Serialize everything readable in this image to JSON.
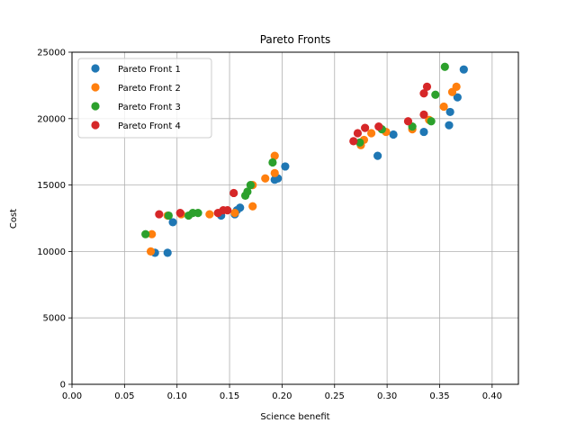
{
  "chart_data": {
    "type": "scatter",
    "title": "Pareto Fronts",
    "xlabel": "Science benefit",
    "ylabel": "Cost",
    "xlim": [
      0.0,
      0.425
    ],
    "ylim": [
      0,
      25000
    ],
    "xticks": [
      "0.00",
      "0.05",
      "0.10",
      "0.15",
      "0.20",
      "0.25",
      "0.30",
      "0.35",
      "0.40"
    ],
    "xtick_values": [
      0.0,
      0.05,
      0.1,
      0.15,
      0.2,
      0.25,
      0.3,
      0.35,
      0.4
    ],
    "yticks": [
      "0",
      "5000",
      "10000",
      "15000",
      "20000",
      "25000"
    ],
    "ytick_values": [
      0,
      5000,
      10000,
      15000,
      20000,
      25000
    ],
    "grid": true,
    "legend_position": "top-left",
    "series": [
      {
        "name": "Pareto Front 1",
        "color": "#1f77b4",
        "points": [
          [
            0.079,
            9900
          ],
          [
            0.091,
            9900
          ],
          [
            0.096,
            12200
          ],
          [
            0.142,
            12700
          ],
          [
            0.155,
            12800
          ],
          [
            0.157,
            13100
          ],
          [
            0.16,
            13300
          ],
          [
            0.193,
            15400
          ],
          [
            0.196,
            15500
          ],
          [
            0.203,
            16400
          ],
          [
            0.291,
            17200
          ],
          [
            0.306,
            18800
          ],
          [
            0.335,
            19000
          ],
          [
            0.359,
            19500
          ],
          [
            0.36,
            20500
          ],
          [
            0.367,
            21600
          ],
          [
            0.373,
            23700
          ]
        ]
      },
      {
        "name": "Pareto Front 2",
        "color": "#ff7f0e",
        "points": [
          [
            0.075,
            10000
          ],
          [
            0.076,
            11300
          ],
          [
            0.091,
            12700
          ],
          [
            0.104,
            12800
          ],
          [
            0.131,
            12800
          ],
          [
            0.155,
            12900
          ],
          [
            0.172,
            13400
          ],
          [
            0.172,
            15000
          ],
          [
            0.184,
            15500
          ],
          [
            0.193,
            15900
          ],
          [
            0.193,
            17200
          ],
          [
            0.275,
            18000
          ],
          [
            0.278,
            18400
          ],
          [
            0.285,
            18900
          ],
          [
            0.299,
            19000
          ],
          [
            0.324,
            19200
          ],
          [
            0.34,
            19900
          ],
          [
            0.354,
            20900
          ],
          [
            0.362,
            22000
          ],
          [
            0.366,
            22400
          ]
        ]
      },
      {
        "name": "Pareto Front 3",
        "color": "#2ca02c",
        "points": [
          [
            0.07,
            11300
          ],
          [
            0.092,
            12700
          ],
          [
            0.111,
            12700
          ],
          [
            0.115,
            12900
          ],
          [
            0.12,
            12900
          ],
          [
            0.165,
            14200
          ],
          [
            0.167,
            14500
          ],
          [
            0.17,
            15000
          ],
          [
            0.191,
            16700
          ],
          [
            0.274,
            18200
          ],
          [
            0.295,
            19200
          ],
          [
            0.324,
            19400
          ],
          [
            0.342,
            19800
          ],
          [
            0.346,
            21800
          ],
          [
            0.355,
            23900
          ]
        ]
      },
      {
        "name": "Pareto Front 4",
        "color": "#d62728",
        "points": [
          [
            0.083,
            12800
          ],
          [
            0.103,
            12900
          ],
          [
            0.139,
            12900
          ],
          [
            0.144,
            13100
          ],
          [
            0.148,
            13100
          ],
          [
            0.154,
            14400
          ],
          [
            0.268,
            18300
          ],
          [
            0.272,
            18900
          ],
          [
            0.279,
            19300
          ],
          [
            0.292,
            19400
          ],
          [
            0.32,
            19800
          ],
          [
            0.335,
            20300
          ],
          [
            0.335,
            21900
          ],
          [
            0.338,
            22400
          ]
        ]
      }
    ]
  }
}
